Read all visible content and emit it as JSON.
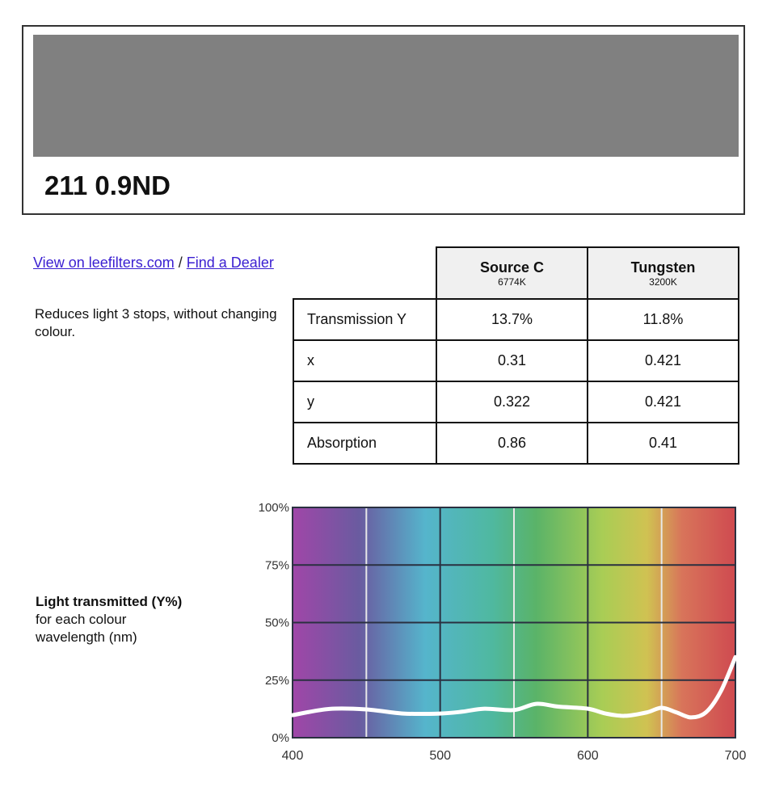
{
  "filter": {
    "swatch_color": "#808080",
    "title": "211 0.9ND"
  },
  "links": {
    "view": "View on leefilters.com",
    "sep": " / ",
    "dealer": "Find a Dealer"
  },
  "description": "Reduces light 3 stops, without changing colour.",
  "table": {
    "headers": [
      {
        "name": "Source C",
        "temp": "6774K"
      },
      {
        "name": "Tungsten",
        "temp": "3200K"
      }
    ],
    "rows": [
      {
        "label": "Transmission Y",
        "values": [
          "13.7%",
          "11.8%"
        ]
      },
      {
        "label": "x",
        "values": [
          "0.31",
          "0.421"
        ]
      },
      {
        "label": "y",
        "values": [
          "0.322",
          "0.421"
        ]
      },
      {
        "label": "Absorption",
        "values": [
          "0.86",
          "0.41"
        ]
      }
    ]
  },
  "chart_label": {
    "bold": "Light transmitted (Y%)",
    "line2": "for each colour",
    "line3": "wavelength (nm)"
  },
  "chart_data": {
    "type": "line",
    "xlim": [
      400,
      700
    ],
    "ylim": [
      0,
      100
    ],
    "xticks": [
      "400",
      "500",
      "600",
      "700"
    ],
    "yticks": [
      "0%",
      "25%",
      "50%",
      "75%",
      "100%"
    ],
    "grid": true,
    "background": "visible spectrum gradient",
    "line_color": "#ffffff",
    "x": [
      400,
      425,
      450,
      475,
      500,
      515,
      530,
      550,
      565,
      580,
      600,
      612,
      625,
      640,
      650,
      660,
      670,
      680,
      690,
      700
    ],
    "y": [
      9.8,
      12.5,
      12.3,
      10.5,
      10.5,
      11.3,
      12.6,
      12,
      14.7,
      13.5,
      12.6,
      10.5,
      9.5,
      11,
      13,
      11,
      8.8,
      11,
      20,
      35
    ]
  }
}
